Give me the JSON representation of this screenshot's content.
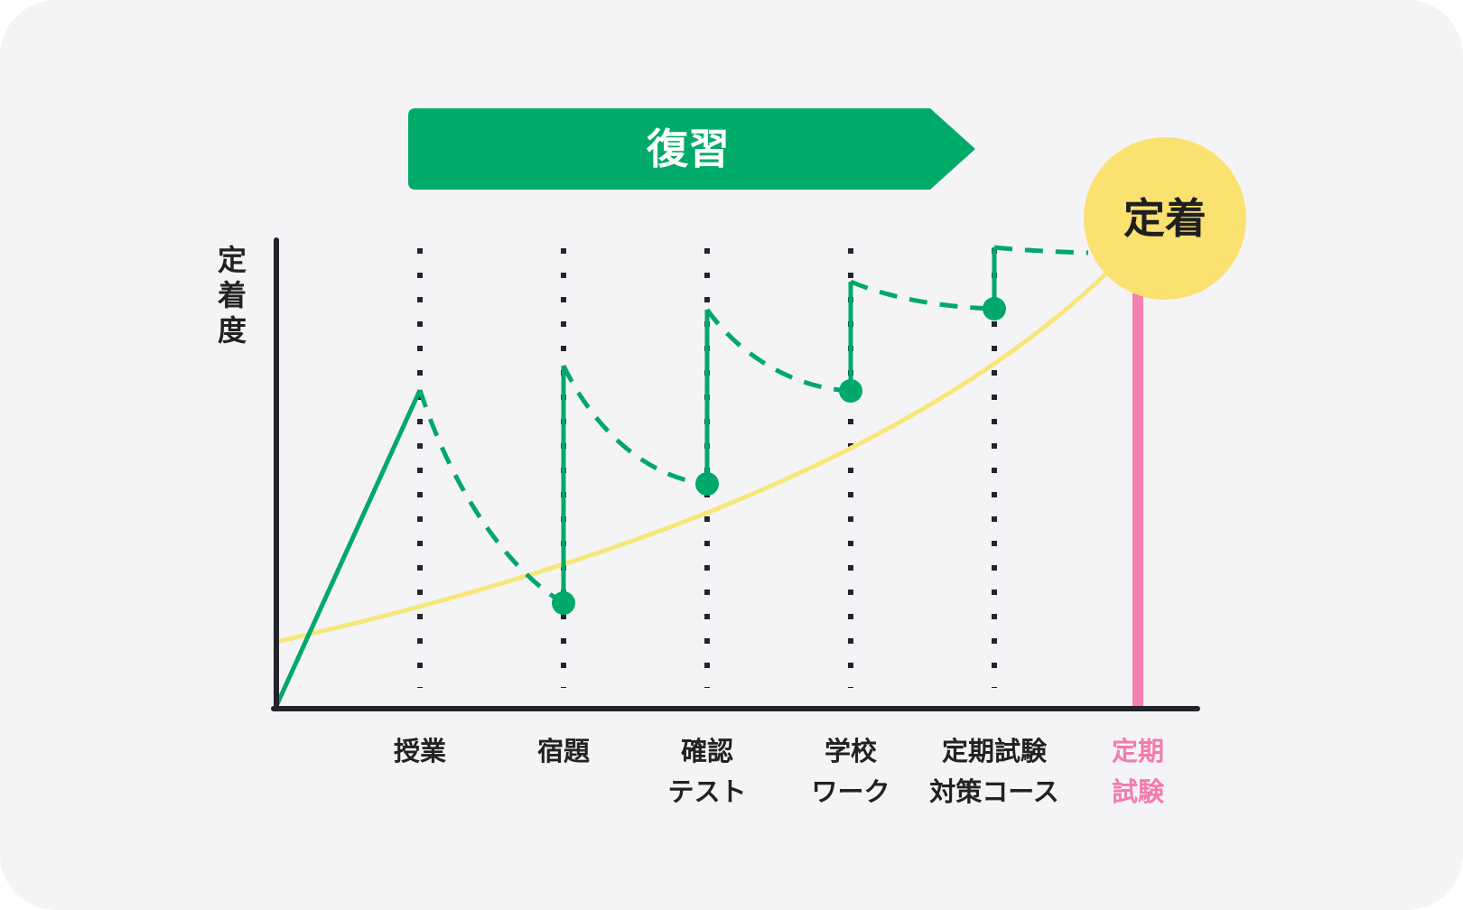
{
  "banner": {
    "label": "復習",
    "color": "#00ab6a"
  },
  "goal": {
    "label": "定着",
    "color": "#fbe170"
  },
  "y_axis": {
    "label": [
      "定",
      "着",
      "度"
    ]
  },
  "stages": [
    {
      "id": "jugyo",
      "lines": [
        "授業"
      ]
    },
    {
      "id": "shukudai",
      "lines": [
        "宿題"
      ]
    },
    {
      "id": "kakunin-test",
      "lines": [
        "確認",
        "テスト"
      ]
    },
    {
      "id": "gakko-work",
      "lines": [
        "学校",
        "ワーク"
      ]
    },
    {
      "id": "teiki-taisaku",
      "lines": [
        "定期試験",
        "対策コース"
      ]
    },
    {
      "id": "teiki-shiken",
      "lines": [
        "定期",
        "試験"
      ],
      "highlight": true
    }
  ],
  "colors": {
    "background": "#f4f4f7",
    "axis": "#23232b",
    "green": "#00a86b",
    "trend": "#f7e77a",
    "exam_bar": "#f57fb0",
    "highlight_text": "#f37cad"
  }
}
